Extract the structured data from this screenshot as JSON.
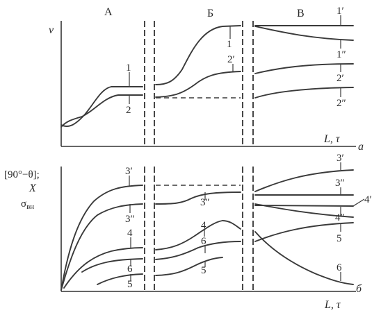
{
  "zones": {
    "a": "А",
    "b": "Б",
    "c": "В"
  },
  "top_panel": {
    "y_label": "v",
    "x_label": "L, τ",
    "panel_label": "а",
    "curve_labels": {
      "c1_zone_a": "1",
      "c2_zone_a": "2",
      "c1_zone_b": "1",
      "c2_zone_b": "2′",
      "c1p_zone_c": "1′",
      "c1pp_zone_c": "1″",
      "c2p_zone_c": "2′",
      "c2pp_zone_c": "2″"
    }
  },
  "bottom_panel": {
    "y_label_line1": "[90°−θ];",
    "y_label_line2": "X",
    "y_label_line3": "σ",
    "y_label_sub": "вн",
    "x_label": "L, τ",
    "panel_label": "б",
    "curve_labels": {
      "c3p_zone_a": "3′",
      "c3pp_zone_a": "3″",
      "c4_zone_a": "4",
      "c6_zone_a": "6",
      "c5_zone_a": "5",
      "c3pp_zone_b": "3″",
      "c4_zone_b": "4",
      "c6_zone_b": "6",
      "c5_zone_b": "5",
      "c3p_zone_c": "3′",
      "c3pp_zone_c": "3″",
      "c4pp_zone_c": "4″",
      "c4p_zone_c": "4′",
      "c5_zone_c": "5",
      "c6_zone_c": "6"
    }
  }
}
